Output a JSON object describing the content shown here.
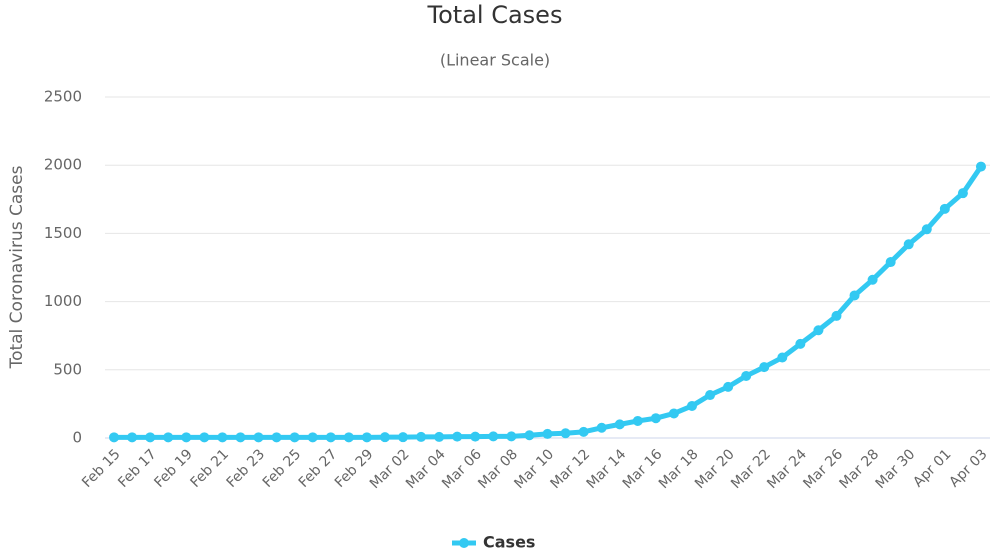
{
  "chart_data": {
    "type": "line",
    "title": "Total Cases",
    "subtitle": "(Linear Scale)",
    "y_label": "Total Coronavirus Cases",
    "categories": [
      "Feb 15",
      null,
      "Feb 17",
      null,
      "Feb 19",
      null,
      "Feb 21",
      null,
      "Feb 23",
      null,
      "Feb 25",
      null,
      "Feb 27",
      null,
      "Feb 29",
      null,
      "Mar 02",
      null,
      "Mar 04",
      null,
      "Mar 06",
      null,
      "Mar 08",
      null,
      "Mar 10",
      null,
      "Mar 12",
      null,
      "Mar 14",
      null,
      "Mar 16",
      null,
      "Mar 18",
      null,
      "Mar 20",
      null,
      "Mar 22",
      null,
      "Mar 24",
      null,
      "Mar 26",
      null,
      "Mar 28",
      null,
      "Mar 30",
      null,
      "Apr 01",
      null,
      "Apr 03"
    ],
    "series": [
      {
        "name": "Cases",
        "color": "#33c9f2",
        "values": [
          5,
          5,
          5,
          5,
          5,
          5,
          5,
          5,
          5,
          5,
          5,
          5,
          5,
          5,
          5,
          6,
          6,
          8,
          8,
          10,
          10,
          12,
          12,
          20,
          30,
          35,
          45,
          75,
          100,
          125,
          145,
          180,
          235,
          315,
          375,
          455,
          520,
          590,
          690,
          790,
          895,
          1045,
          1160,
          1290,
          1420,
          1530,
          1680,
          1795,
          1990
        ]
      }
    ],
    "ylim": [
      0,
      2500
    ],
    "yticks": [
      0,
      500,
      1000,
      1500,
      2000,
      2500
    ],
    "grid": true
  }
}
